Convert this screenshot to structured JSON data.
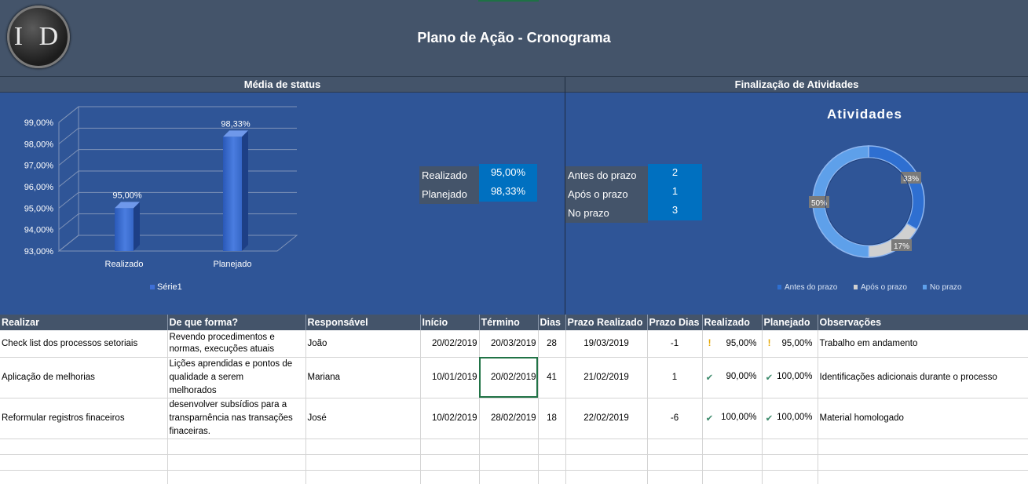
{
  "header": {
    "logo_text": "I D",
    "title": "Plano de Ação - Cronograma"
  },
  "sections": {
    "left_title": "Média de status",
    "right_title": "Finalização de Atividades"
  },
  "status_summary": [
    {
      "label": "Realizado",
      "value": "95,00%"
    },
    {
      "label": "Planejado",
      "value": "98,33%"
    }
  ],
  "activity_summary": [
    {
      "label": "Antes do prazo",
      "value": "2"
    },
    {
      "label": "Após o prazo",
      "value": "1"
    },
    {
      "label": "No prazo",
      "value": "3"
    }
  ],
  "chart_data": [
    {
      "type": "bar",
      "categories": [
        "Realizado",
        "Planejado"
      ],
      "series": [
        {
          "name": "Série1",
          "values": [
            95.0,
            98.33
          ]
        }
      ],
      "data_labels": [
        "95,00%",
        "98,33%"
      ],
      "yticks": [
        "93,00%",
        "94,00%",
        "95,00%",
        "96,00%",
        "97,00%",
        "98,00%",
        "99,00%"
      ],
      "ylim": [
        93,
        99
      ],
      "legend": "bottom",
      "grid": true
    },
    {
      "type": "pie",
      "title": "Atividades",
      "categories": [
        "Antes do prazo",
        "Após o prazo",
        "No prazo"
      ],
      "values": [
        2,
        1,
        3
      ],
      "data_labels": [
        "33%",
        "17%",
        "50%"
      ],
      "colors": [
        "#2e6fd1",
        "#d0d0d0",
        "#5ea0ea"
      ],
      "legend": "bottom"
    }
  ],
  "table": {
    "headers": [
      "Realizar",
      "De  que forma?",
      "Responsável",
      "Início",
      "Término",
      "Dias",
      "Prazo Realizado",
      "Prazo Dias",
      "Realizado",
      "Planejado",
      "Observações"
    ],
    "rows": [
      {
        "realizar": "Check list dos processos setoriais",
        "forma": [
          "Revendo procedimentos e",
          "normas, execuções atuais"
        ],
        "responsavel": "João",
        "inicio": "20/02/2019",
        "termino": "20/03/2019",
        "dias": "28",
        "prazo_realizado": "19/03/2019",
        "prazo_dias": "-1",
        "realizado_icon": "warning-icon",
        "realizado": "95,00%",
        "planejado_icon": "warning-icon",
        "planejado": "95,00%",
        "obs": "Trabalho em andamento"
      },
      {
        "realizar": "Aplicação de melhorias",
        "forma": [
          "Lições aprendidas e pontos de",
          "qualidade a serem",
          "melhorados"
        ],
        "responsavel": "Mariana",
        "inicio": "10/01/2019",
        "termino": "20/02/2019",
        "dias": "41",
        "prazo_realizado": "21/02/2019",
        "prazo_dias": "1",
        "realizado_icon": "check-icon",
        "realizado": "90,00%",
        "planejado_icon": "check-icon",
        "planejado": "100,00%",
        "obs": "Identificações adicionais durante o processo"
      },
      {
        "realizar": "Reformular registros finaceiros",
        "forma": [
          "desenvolver subsídios para a",
          "transparnência nas transações",
          "finaceiras."
        ],
        "responsavel": "José",
        "inicio": "10/02/2019",
        "termino": "28/02/2019",
        "dias": "18",
        "prazo_realizado": "22/02/2019",
        "prazo_dias": "-6",
        "realizado_icon": "check-icon",
        "realizado": "100,00%",
        "planejado_icon": "check-icon",
        "planejado": "100,00%",
        "obs": "Material homologado"
      }
    ]
  }
}
